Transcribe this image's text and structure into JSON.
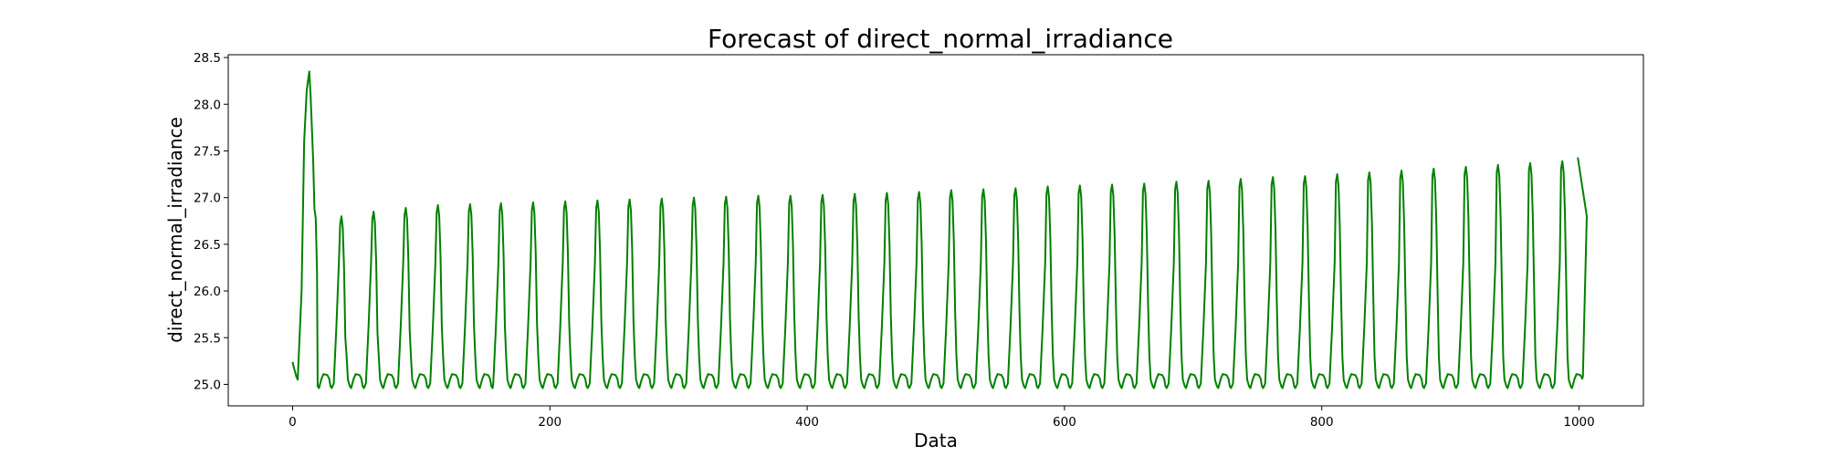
{
  "chart_data": {
    "type": "line",
    "title": "Forecast of direct_normal_irradiance",
    "xlabel": "Data",
    "ylabel": "direct_normal_irradiance",
    "xlim": [
      -50,
      1050
    ],
    "ylim": [
      24.77,
      28.53
    ],
    "xticks": [
      0,
      200,
      400,
      600,
      800,
      1000
    ],
    "yticks": [
      25.0,
      25.5,
      26.0,
      26.5,
      27.0,
      27.5,
      28.0,
      28.5
    ],
    "grid": false,
    "legend": "none",
    "series": [
      {
        "color": "#008000",
        "period": 24,
        "x_start": 0,
        "x_end": 999,
        "start_values": [
          25.24,
          25.18,
          25.13,
          25.08,
          25.05
        ],
        "first_peak": {
          "x": 13,
          "y": 28.35
        },
        "peaks": [
          [
            38,
            26.8
          ],
          [
            63,
            26.85
          ],
          [
            88,
            26.89
          ],
          [
            113,
            26.92
          ],
          [
            138,
            26.93
          ],
          [
            162,
            26.94
          ],
          [
            187,
            26.95
          ],
          [
            212,
            26.96
          ],
          [
            237,
            26.97
          ],
          [
            262,
            26.98
          ],
          [
            287,
            26.99
          ],
          [
            312,
            27.0
          ],
          [
            337,
            27.01
          ],
          [
            362,
            27.02
          ],
          [
            387,
            27.02
          ],
          [
            412,
            27.03
          ],
          [
            437,
            27.04
          ],
          [
            462,
            27.05
          ],
          [
            487,
            27.06
          ],
          [
            512,
            27.08
          ],
          [
            537,
            27.09
          ],
          [
            562,
            27.1
          ],
          [
            587,
            27.12
          ],
          [
            612,
            27.13
          ],
          [
            637,
            27.14
          ],
          [
            662,
            27.15
          ],
          [
            687,
            27.17
          ],
          [
            712,
            27.18
          ],
          [
            737,
            27.2
          ],
          [
            762,
            27.22
          ],
          [
            787,
            27.23
          ],
          [
            812,
            27.25
          ],
          [
            837,
            27.27
          ],
          [
            862,
            27.29
          ],
          [
            887,
            27.31
          ],
          [
            912,
            27.33
          ],
          [
            937,
            27.35
          ],
          [
            962,
            27.37
          ],
          [
            987,
            27.39
          ]
        ],
        "trough": 24.96,
        "plateau": 25.11,
        "end_value": 27.43
      }
    ]
  }
}
